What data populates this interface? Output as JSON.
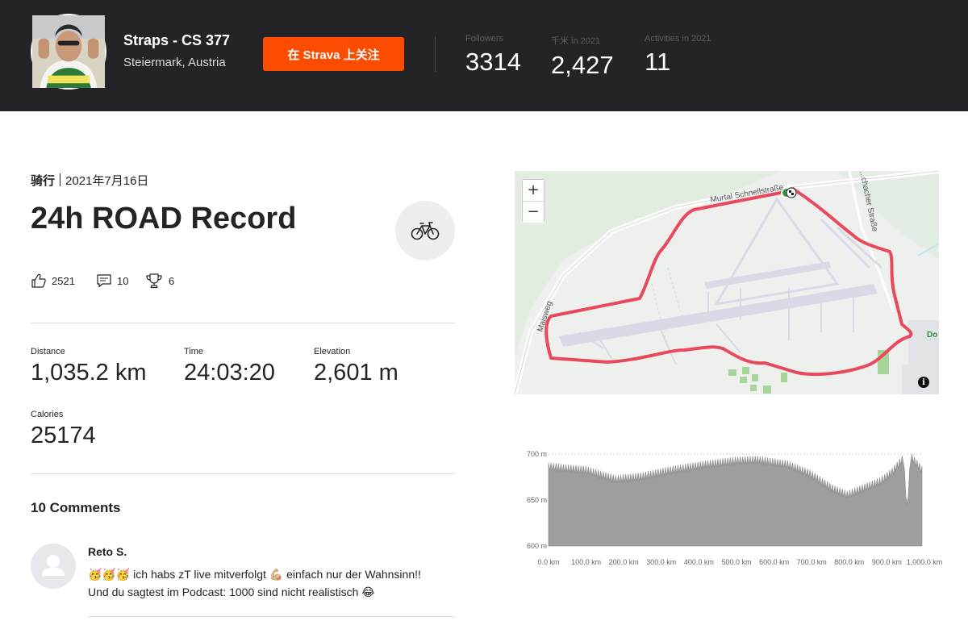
{
  "header": {
    "athlete_name": "Straps - CS 377",
    "location": "Steiermark, Austria",
    "follow_label": "在 Strava 上关注",
    "stats": [
      {
        "label": "Followers",
        "value": "3314"
      },
      {
        "label": "千米 in 2021",
        "value": "2,427"
      },
      {
        "label": "Activities in 2021",
        "value": "11"
      }
    ]
  },
  "activity": {
    "type": "骑行",
    "date": "2021年7月16日",
    "title": "24h ROAD Record",
    "sport_icon": "bike-icon",
    "kudos": "2521",
    "comments_count": "10",
    "achievements": "6",
    "metrics": [
      {
        "label": "Distance",
        "value": "1,035.2 km"
      },
      {
        "label": "Time",
        "value": "24:03:20"
      },
      {
        "label": "Elevation",
        "value": "2,601 m"
      },
      {
        "label": "Calories",
        "value": "25174"
      }
    ]
  },
  "comments": {
    "title": "10 Comments",
    "items": [
      {
        "author": "Reto S.",
        "line1": "🥳🥳🥳 ich habs zT live mitverfolgt 💪🏼 einfach nur der Wahnsinn!!",
        "line2": "Und du sagtest im Podcast: 1000 sind nicht realistisch 😂"
      }
    ]
  },
  "map": {
    "zoom_in": "+",
    "zoom_out": "−",
    "info": "i",
    "labels": {
      "road_top": "Murtal Schnellstraße",
      "road_right": "...chacher Straße",
      "road_left": "Maisweg",
      "edge_right": "Do"
    },
    "route_color": "#e8495d"
  },
  "elevation": {
    "y_ticks": [
      "700 m",
      "650 m",
      "600 m"
    ],
    "x_ticks": [
      "0.0 km",
      "100.0 km",
      "200.0 km",
      "300.0 km",
      "400.0 km",
      "500.0 km",
      "600.0 km",
      "700.0 km",
      "800.0 km",
      "900.0 km",
      "1,000.0 km"
    ],
    "fill_color": "#9e9e9e"
  },
  "colors": {
    "header_bg": "#242428",
    "brand": "#fc4c02"
  }
}
